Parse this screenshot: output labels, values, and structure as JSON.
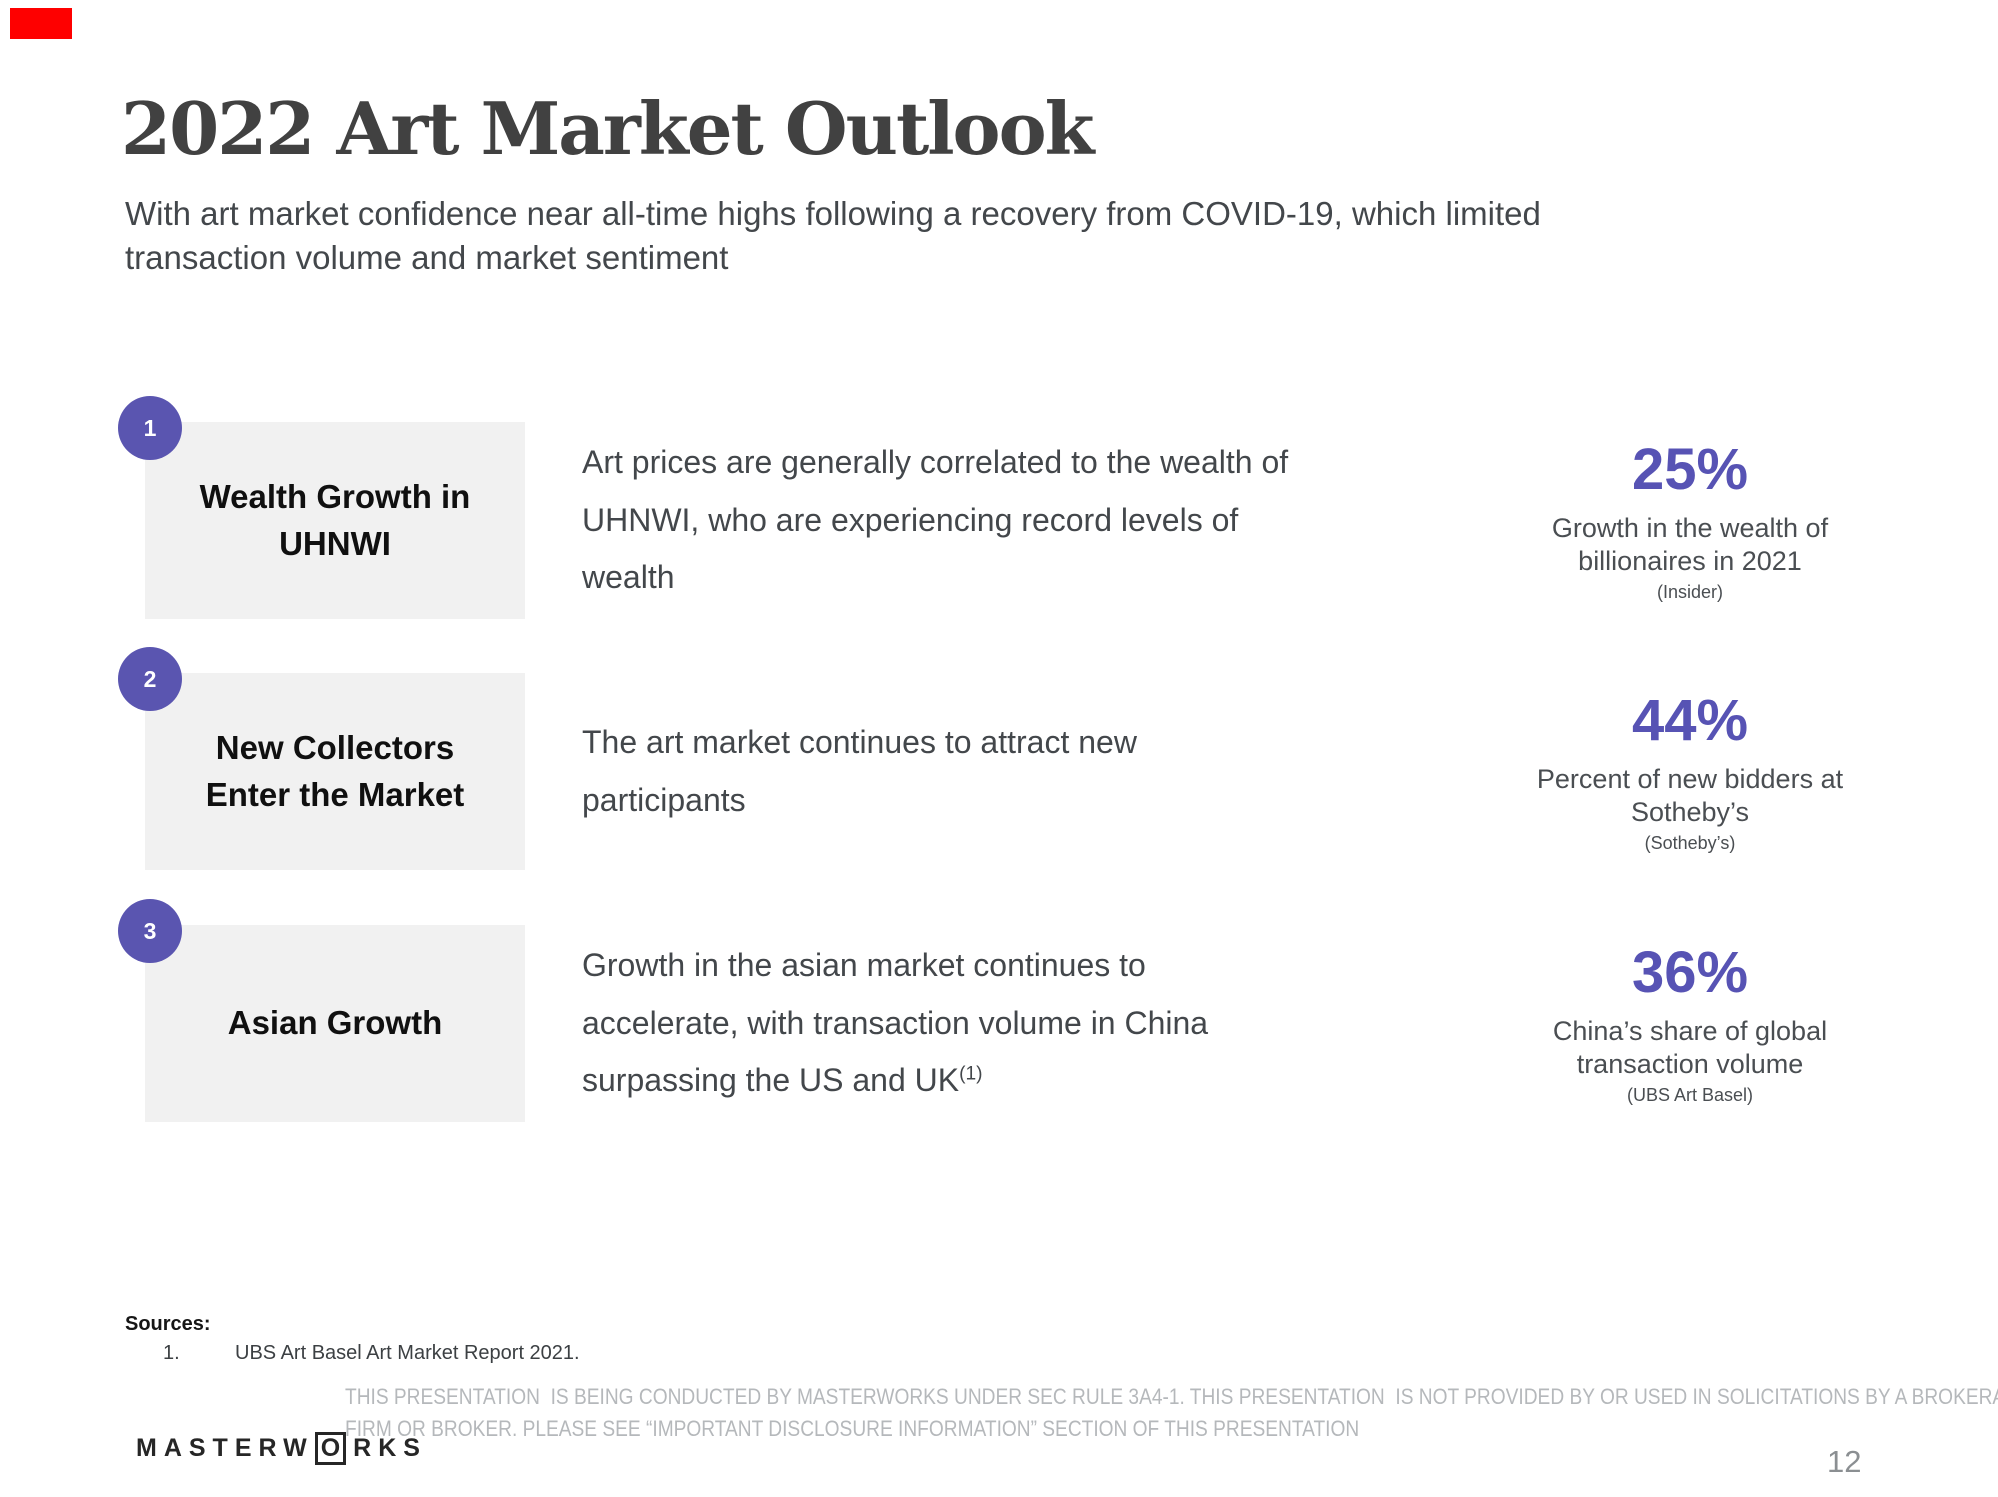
{
  "slide": {
    "title": "2022 Art Market Outlook",
    "subtitle_lines": [
      "With art market confidence near all-time highs following a recovery from COVID-19, which limited",
      "transaction volume and market sentiment"
    ],
    "page_number": "12"
  },
  "rows": [
    {
      "number": "1",
      "topic_lines": [
        "Wealth Growth in",
        "UHNWI"
      ],
      "description_lines": [
        "Art prices are generally correlated to the wealth of",
        "UHNWI, who are experiencing record levels of",
        "wealth"
      ],
      "stat": {
        "value": "25%",
        "caption_lines": [
          "Growth in the wealth of",
          "billionaires in 2021"
        ],
        "source": "(Insider)"
      }
    },
    {
      "number": "2",
      "topic_lines": [
        "New Collectors",
        "Enter the Market"
      ],
      "description_lines": [
        "The art market continues to attract new",
        "participants"
      ],
      "stat": {
        "value": "44%",
        "caption_lines": [
          "Percent of new bidders at",
          "Sotheby’s"
        ],
        "source": "(Sotheby’s)"
      }
    },
    {
      "number": "3",
      "topic_lines": [
        "Asian Growth"
      ],
      "description_lines": [
        "Growth in the asian market continues to",
        "accelerate, with transaction volume in China",
        "surpassing the US and UK"
      ],
      "description_footnote_marker": "(1)",
      "stat": {
        "value": "36%",
        "caption_lines": [
          "China’s share of global",
          "transaction volume"
        ],
        "source": "(UBS Art Basel)"
      }
    }
  ],
  "footer": {
    "sources_label": "Sources:",
    "source_items": [
      {
        "index": "1.",
        "text": "UBS Art Basel Art Market Report 2021."
      }
    ],
    "logo": {
      "part1": "MASTERW",
      "boxed_letter": "O",
      "part2": "RKS"
    },
    "disclaimer_lines": [
      "THIS PRESENTATION  IS BEING CONDUCTED BY MASTERWORKS UNDER SEC RULE 3A4-1. THIS PRESENTATION  IS NOT PROVIDED BY OR USED IN SOLICITATIONS BY A BROKERAGE",
      "FIRM OR BROKER. PLEASE SEE “IMPORTANT DISCLOSURE INFORMATION” SECTION OF THIS PRESENTATION"
    ]
  },
  "colors": {
    "accent_purple": "#5753b4",
    "badge_purple": "#5a55b0",
    "card_gray": "#f1f1f1",
    "corner_mark_red": "#fe0000",
    "title_gray": "#414141",
    "disclaimer_gray": "#b5b8bb"
  }
}
